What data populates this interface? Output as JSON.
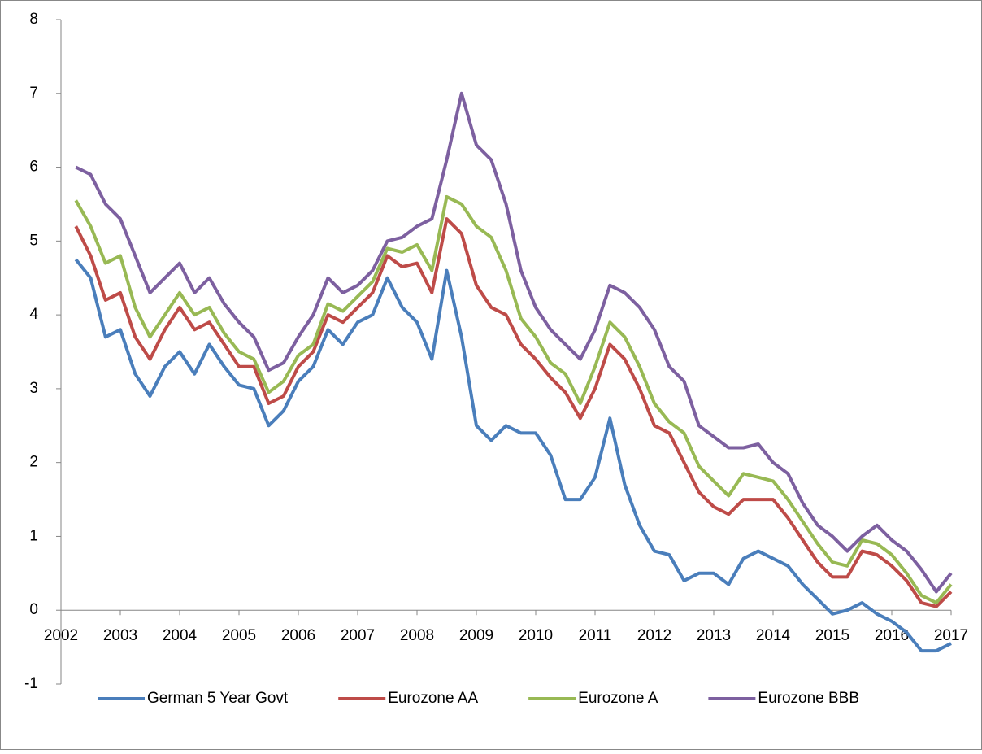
{
  "chart_data": {
    "type": "line",
    "x": [
      2002.25,
      2002.5,
      2002.75,
      2003,
      2003.25,
      2003.5,
      2003.75,
      2004,
      2004.25,
      2004.5,
      2004.75,
      2005,
      2005.25,
      2005.5,
      2005.75,
      2006,
      2006.25,
      2006.5,
      2006.75,
      2007,
      2007.25,
      2007.5,
      2007.75,
      2008,
      2008.25,
      2008.5,
      2008.75,
      2009,
      2009.25,
      2009.5,
      2009.75,
      2010,
      2010.25,
      2010.5,
      2010.75,
      2011,
      2011.25,
      2011.5,
      2011.75,
      2012,
      2012.25,
      2012.5,
      2012.75,
      2013,
      2013.25,
      2013.5,
      2013.75,
      2014,
      2014.25,
      2014.5,
      2014.75,
      2015,
      2015.25,
      2015.5,
      2015.75,
      2016,
      2016.25,
      2016.5,
      2016.75,
      2017
    ],
    "series": [
      {
        "name": "German 5 Year Govt",
        "color": "#4a7ebb",
        "values": [
          4.75,
          4.5,
          3.7,
          3.8,
          3.2,
          2.9,
          3.3,
          3.5,
          3.2,
          3.6,
          3.3,
          3.05,
          3.0,
          2.5,
          2.7,
          3.1,
          3.3,
          3.8,
          3.6,
          3.9,
          4.0,
          4.5,
          4.1,
          3.9,
          3.4,
          4.6,
          3.7,
          2.5,
          2.3,
          2.5,
          2.4,
          2.4,
          2.1,
          1.5,
          1.5,
          1.8,
          2.6,
          1.7,
          1.15,
          0.8,
          0.75,
          0.4,
          0.5,
          0.5,
          0.35,
          0.7,
          0.8,
          0.7,
          0.6,
          0.35,
          0.15,
          -0.05,
          0.0,
          0.1,
          -0.05,
          -0.15,
          -0.3,
          -0.55,
          -0.55,
          -0.45
        ]
      },
      {
        "name": "Eurozone AA",
        "color": "#be4b48",
        "values": [
          5.2,
          4.8,
          4.2,
          4.3,
          3.7,
          3.4,
          3.8,
          4.1,
          3.8,
          3.9,
          3.6,
          3.3,
          3.3,
          2.8,
          2.9,
          3.3,
          3.5,
          4.0,
          3.9,
          4.1,
          4.3,
          4.8,
          4.65,
          4.7,
          4.3,
          5.3,
          5.1,
          4.4,
          4.1,
          4.0,
          3.6,
          3.4,
          3.15,
          2.95,
          2.6,
          3.0,
          3.6,
          3.4,
          3.0,
          2.5,
          2.4,
          2.0,
          1.6,
          1.4,
          1.3,
          1.5,
          1.5,
          1.5,
          1.25,
          0.95,
          0.65,
          0.45,
          0.45,
          0.8,
          0.75,
          0.6,
          0.4,
          0.1,
          0.05,
          0.25
        ]
      },
      {
        "name": "Eurozone A",
        "color": "#98b954",
        "values": [
          5.55,
          5.2,
          4.7,
          4.8,
          4.1,
          3.7,
          4.0,
          4.3,
          4.0,
          4.1,
          3.75,
          3.5,
          3.4,
          2.95,
          3.1,
          3.45,
          3.6,
          4.15,
          4.05,
          4.25,
          4.45,
          4.9,
          4.85,
          4.95,
          4.6,
          5.6,
          5.5,
          5.2,
          5.05,
          4.6,
          3.95,
          3.7,
          3.35,
          3.2,
          2.8,
          3.3,
          3.9,
          3.7,
          3.3,
          2.8,
          2.55,
          2.4,
          1.95,
          1.75,
          1.55,
          1.85,
          1.8,
          1.75,
          1.5,
          1.2,
          0.9,
          0.65,
          0.6,
          0.95,
          0.9,
          0.75,
          0.5,
          0.2,
          0.1,
          0.35
        ]
      },
      {
        "name": "Eurozone BBB",
        "color": "#7d60a0",
        "values": [
          6.0,
          5.9,
          5.5,
          5.3,
          4.8,
          4.3,
          4.5,
          4.7,
          4.3,
          4.5,
          4.15,
          3.9,
          3.7,
          3.25,
          3.35,
          3.7,
          4.0,
          4.5,
          4.3,
          4.4,
          4.6,
          5.0,
          5.05,
          5.2,
          5.3,
          6.1,
          7.0,
          6.3,
          6.1,
          5.5,
          4.6,
          4.1,
          3.8,
          3.6,
          3.4,
          3.8,
          4.4,
          4.3,
          4.1,
          3.8,
          3.3,
          3.1,
          2.5,
          2.35,
          2.2,
          2.2,
          2.25,
          2.0,
          1.85,
          1.45,
          1.15,
          1.0,
          0.8,
          1.0,
          1.15,
          0.95,
          0.8,
          0.55,
          0.25,
          0.5
        ]
      }
    ],
    "xlim": [
      2002,
      2017
    ],
    "xticks": [
      2002,
      2003,
      2004,
      2005,
      2006,
      2007,
      2008,
      2009,
      2010,
      2011,
      2012,
      2013,
      2014,
      2015,
      2016,
      2017
    ],
    "ylim": [
      -1,
      8
    ],
    "yticks": [
      -1,
      0,
      1,
      2,
      3,
      4,
      5,
      6,
      7,
      8
    ],
    "legend": "bottom"
  }
}
